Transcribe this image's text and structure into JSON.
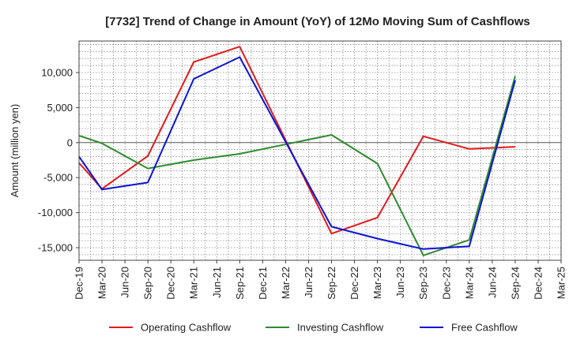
{
  "chart_data": {
    "type": "line",
    "title": "[7732]  Trend of Change in Amount (YoY) of 12Mo Moving Sum of Cashflows",
    "xlabel": "",
    "ylabel": "Amount (million yen)",
    "ylim": [
      -16800,
      14500
    ],
    "y_ticks": [
      10000,
      5000,
      0,
      -5000,
      -10000,
      -15000
    ],
    "y_tick_labels": [
      "10,000",
      "5,000",
      "0",
      "-5,000",
      "-10,000",
      "-15,000"
    ],
    "categories": [
      "Dec-19",
      "Mar-20",
      "Jun-20",
      "Sep-20",
      "Dec-20",
      "Mar-21",
      "Jun-21",
      "Sep-21",
      "Dec-21",
      "Mar-22",
      "Jun-22",
      "Sep-22",
      "Dec-22",
      "Mar-23",
      "Jun-23",
      "Sep-23",
      "Dec-23",
      "Mar-24",
      "Jun-24",
      "Sep-24",
      "Dec-24",
      "Mar-25"
    ],
    "grid": true,
    "legend_position": "bottom",
    "series": [
      {
        "name": "Operating Cashflow",
        "color": "#e31a1c",
        "values": [
          -2900,
          -6600,
          null,
          -1900,
          null,
          11500,
          null,
          13700,
          null,
          null,
          null,
          -13000,
          null,
          -10700,
          null,
          900,
          null,
          -900,
          null,
          -600,
          null,
          null
        ]
      },
      {
        "name": "Investing Cashflow",
        "color": "#2e8b2e",
        "values": [
          1000,
          -100,
          null,
          -3700,
          null,
          -2500,
          null,
          -1600,
          null,
          null,
          null,
          1100,
          null,
          -3000,
          null,
          -16100,
          null,
          -13900,
          null,
          9500,
          null,
          null
        ]
      },
      {
        "name": "Free Cashflow",
        "color": "#0a14d8",
        "values": [
          -2000,
          -6700,
          null,
          -5700,
          null,
          9100,
          null,
          12200,
          null,
          null,
          null,
          -12000,
          null,
          -13700,
          null,
          -15200,
          null,
          -14800,
          null,
          8900,
          null,
          null
        ]
      }
    ]
  }
}
